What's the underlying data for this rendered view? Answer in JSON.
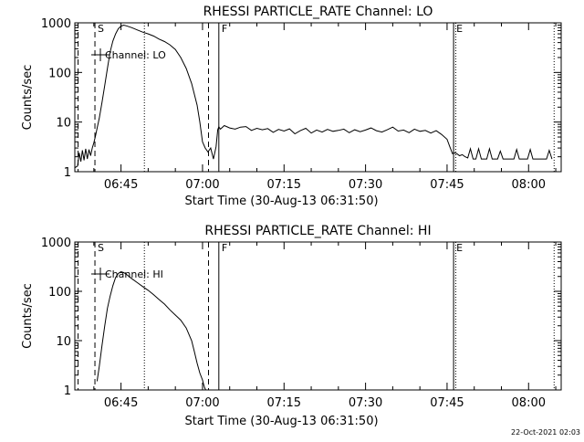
{
  "footer": {
    "timestamp": "22-Oct-2021 02:03"
  },
  "chart_data": [
    {
      "type": "line",
      "title": "RHESSI PARTICLE_RATE Channel: LO",
      "xlabel": "Start Time (30-Aug-13 06:31:50)",
      "ylabel": "Counts/sec",
      "yscale": "log",
      "ylim": [
        1,
        1000
      ],
      "xlim_min": [
        36.5,
        126
      ],
      "x_unit": "minutes after 06:00 UT",
      "xticks": [
        {
          "x": 45,
          "label": "06:45"
        },
        {
          "x": 60,
          "label": "07:00"
        },
        {
          "x": 75,
          "label": "07:15"
        },
        {
          "x": 90,
          "label": "07:30"
        },
        {
          "x": 105,
          "label": "07:45"
        },
        {
          "x": 120,
          "label": "08:00"
        }
      ],
      "yticks": [
        {
          "y": 1,
          "label": "1"
        },
        {
          "y": 10,
          "label": "10"
        },
        {
          "y": 100,
          "label": "100"
        },
        {
          "y": 1000,
          "label": "1000"
        }
      ],
      "legend": {
        "label": "Channel: LO",
        "position": "top-left"
      },
      "markers": [
        {
          "x": 37.1,
          "style": "dashed",
          "label": ""
        },
        {
          "x": 40.2,
          "style": "dashed",
          "label": "S"
        },
        {
          "x": 49.3,
          "style": "dotted",
          "label": ""
        },
        {
          "x": 61.1,
          "style": "dashed",
          "label": ""
        },
        {
          "x": 63.0,
          "style": "solid",
          "label": "F"
        },
        {
          "x": 106.2,
          "style": "solid",
          "label": "E"
        },
        {
          "x": 106.6,
          "style": "dotted",
          "label": ""
        },
        {
          "x": 124.7,
          "style": "dotted",
          "label": ""
        }
      ],
      "series": [
        {
          "x": [
            36.5,
            37.0,
            37.3,
            37.6,
            37.9,
            38.2,
            38.5,
            38.8,
            39.1,
            39.4,
            39.7,
            40.0,
            40.3,
            40.6,
            41.0,
            41.5,
            42,
            42.5,
            43,
            43.5,
            44,
            44.5,
            45,
            45.5,
            46,
            47,
            48,
            49,
            50,
            51,
            52,
            53,
            54,
            55,
            56,
            57,
            58,
            59,
            59.5,
            60,
            60.5,
            61,
            61.5,
            62,
            62.5,
            62.8,
            63.0,
            63.3,
            64,
            65,
            66,
            67,
            68,
            69,
            70,
            71,
            72,
            73,
            74,
            75,
            76,
            77,
            78,
            79,
            80,
            81,
            82,
            83,
            84,
            85,
            86,
            87,
            88,
            89,
            90,
            91,
            92,
            93,
            94,
            95,
            96,
            97,
            98,
            99,
            100,
            101,
            102,
            103,
            104,
            105,
            105.5,
            106.0,
            106.3,
            106.8,
            107.3,
            107.8,
            108.3,
            108.8,
            109.3,
            109.8,
            110.3,
            110.8,
            111.3,
            111.8,
            112.3,
            112.8,
            113.3,
            113.8,
            114.3,
            114.8,
            115.3,
            115.8,
            116.3,
            116.8,
            117.3,
            117.8,
            118.3,
            118.8,
            119.3,
            119.8,
            120.3,
            120.8,
            121.3,
            121.8,
            122.3,
            122.8,
            123.3,
            123.8,
            124.3
          ],
          "y": [
            1.2,
            1.3,
            2.4,
            1.6,
            2.7,
            1.7,
            2.9,
            1.8,
            2.8,
            2.1,
            3.0,
            3.8,
            5.2,
            7.5,
            12,
            25,
            55,
            120,
            260,
            430,
            600,
            760,
            860,
            900,
            870,
            800,
            720,
            650,
            600,
            540,
            470,
            420,
            360,
            290,
            200,
            120,
            60,
            22,
            10,
            4,
            3,
            2.5,
            3.0,
            1.8,
            3.2,
            7,
            8,
            7.2,
            8.5,
            7.6,
            7.2,
            7.9,
            8.1,
            6.8,
            7.5,
            7.0,
            7.4,
            6.2,
            7.1,
            6.6,
            7.3,
            5.8,
            6.7,
            7.5,
            6.0,
            6.9,
            6.3,
            7.1,
            6.5,
            6.8,
            7.2,
            6.1,
            7.0,
            6.4,
            6.9,
            7.6,
            6.7,
            6.3,
            7.0,
            7.9,
            6.6,
            6.9,
            6.1,
            7.2,
            6.5,
            6.8,
            6.0,
            6.7,
            5.6,
            4.5,
            3.2,
            2.3,
            2.4,
            2.3,
            2.1,
            2.2,
            2.0,
            1.9,
            2.9,
            1.8,
            1.8,
            2.9,
            1.8,
            1.8,
            1.8,
            2.9,
            1.8,
            1.8,
            1.8,
            2.6,
            1.8,
            1.8,
            1.8,
            1.8,
            1.8,
            2.8,
            1.8,
            1.8,
            1.8,
            1.8,
            2.8,
            1.8,
            1.8,
            1.8,
            1.8,
            1.8,
            1.8,
            2.7,
            1.8
          ]
        }
      ]
    },
    {
      "type": "line",
      "title": "RHESSI PARTICLE_RATE Channel: HI",
      "xlabel": "Start Time (30-Aug-13 06:31:50)",
      "ylabel": "Counts/sec",
      "yscale": "log",
      "ylim": [
        1,
        1000
      ],
      "xlim_min": [
        36.5,
        126
      ],
      "x_unit": "minutes after 06:00 UT",
      "xticks": [
        {
          "x": 45,
          "label": "06:45"
        },
        {
          "x": 60,
          "label": "07:00"
        },
        {
          "x": 75,
          "label": "07:15"
        },
        {
          "x": 90,
          "label": "07:30"
        },
        {
          "x": 105,
          "label": "07:45"
        },
        {
          "x": 120,
          "label": "08:00"
        }
      ],
      "yticks": [
        {
          "y": 1,
          "label": "1"
        },
        {
          "y": 10,
          "label": "10"
        },
        {
          "y": 100,
          "label": "100"
        },
        {
          "y": 1000,
          "label": "1000"
        }
      ],
      "legend": {
        "label": "Channel: HI",
        "position": "top-left"
      },
      "markers": [
        {
          "x": 37.1,
          "style": "dashed",
          "label": ""
        },
        {
          "x": 40.2,
          "style": "dashed",
          "label": "S"
        },
        {
          "x": 49.3,
          "style": "dotted",
          "label": ""
        },
        {
          "x": 61.1,
          "style": "dashed",
          "label": ""
        },
        {
          "x": 63.0,
          "style": "solid",
          "label": "F"
        },
        {
          "x": 106.2,
          "style": "solid",
          "label": "E"
        },
        {
          "x": 106.6,
          "style": "dotted",
          "label": ""
        },
        {
          "x": 124.7,
          "style": "dotted",
          "label": ""
        }
      ],
      "series": [
        {
          "x": [
            40.6,
            41.0,
            41.5,
            42,
            42.5,
            43,
            43.5,
            44,
            44.5,
            45,
            45.5,
            46,
            47,
            48,
            49,
            50,
            51,
            52,
            53,
            54,
            55,
            56,
            57,
            58,
            58.5,
            59,
            59.5,
            60,
            60.2,
            60.4,
            60.6
          ],
          "y": [
            1.5,
            3,
            8,
            20,
            45,
            80,
            130,
            190,
            230,
            250,
            240,
            220,
            180,
            150,
            125,
            105,
            85,
            68,
            55,
            42,
            33,
            26,
            18,
            10,
            6,
            3.5,
            2.2,
            1.6,
            1.3,
            1.1,
            1.0
          ]
        }
      ]
    }
  ]
}
